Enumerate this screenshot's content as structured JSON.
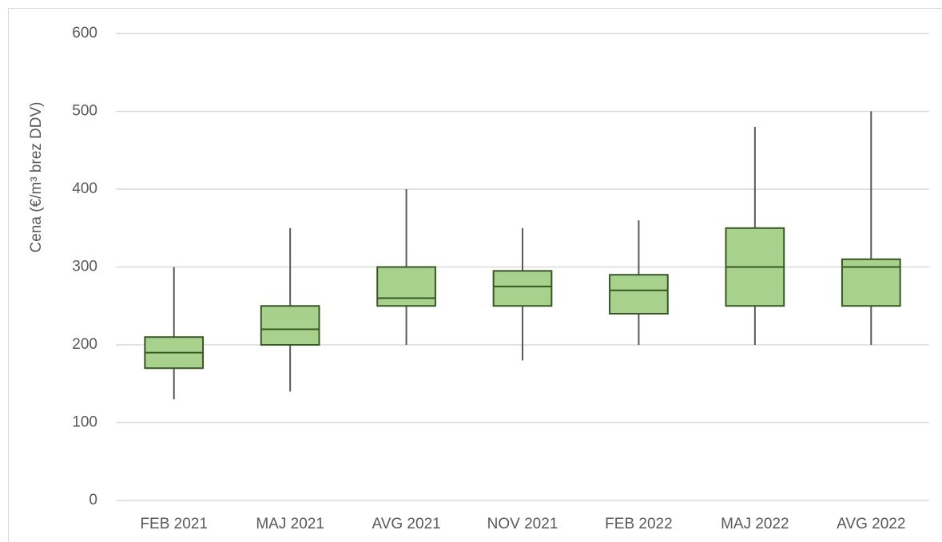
{
  "chart_data": {
    "type": "box",
    "y_label": "Cena (€/m³ brez DDV)",
    "categories": [
      "FEB 2021",
      "MAJ 2021",
      "AVG 2021",
      "NOV 2021",
      "FEB 2022",
      "MAJ 2022",
      "AVG 2022"
    ],
    "min": [
      130,
      140,
      200,
      180,
      200,
      200,
      200
    ],
    "q1": [
      170,
      200,
      250,
      250,
      240,
      250,
      250
    ],
    "median": [
      190,
      220,
      260,
      275,
      270,
      300,
      300
    ],
    "q3": [
      210,
      250,
      300,
      295,
      290,
      350,
      310
    ],
    "max": [
      300,
      350,
      400,
      350,
      360,
      480,
      500
    ],
    "box_color": "#a9d18e",
    "box_edge_color": "#375623",
    "whisker_color": "#595959",
    "ylim": [
      0,
      600
    ],
    "yticks": [
      0,
      100,
      200,
      300,
      400,
      500,
      600
    ],
    "grid": true
  }
}
